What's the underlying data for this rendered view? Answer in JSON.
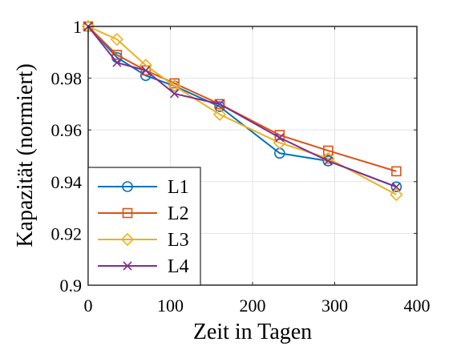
{
  "chart_data": {
    "type": "line",
    "xlabel": "Zeit in Tagen",
    "ylabel": "Kapazität (normiert)",
    "xlim": [
      0,
      400
    ],
    "ylim": [
      0.9,
      1.0
    ],
    "xticks": [
      0,
      100,
      200,
      300,
      400
    ],
    "xtick_labels": [
      "0",
      "100",
      "200",
      "300",
      "400"
    ],
    "yticks": [
      0.9,
      0.92,
      0.94,
      0.96,
      0.98,
      1.0
    ],
    "ytick_labels": [
      "0.9",
      "0.92",
      "0.94",
      "0.96",
      "0.98",
      "1"
    ],
    "grid": true,
    "legend_position": "bottom-left",
    "series": [
      {
        "name": "L1",
        "color": "#0072BD",
        "marker": "circle",
        "x": [
          0,
          35,
          70,
          105,
          160,
          233,
          292,
          375
        ],
        "y": [
          1.0,
          0.988,
          0.981,
          0.977,
          0.969,
          0.951,
          0.948,
          0.938
        ]
      },
      {
        "name": "L2",
        "color": "#D95319",
        "marker": "square",
        "x": [
          0,
          35,
          70,
          105,
          160,
          233,
          292,
          375
        ],
        "y": [
          1.0,
          0.989,
          0.983,
          0.978,
          0.97,
          0.958,
          0.952,
          0.944
        ]
      },
      {
        "name": "L3",
        "color": "#EDB120",
        "marker": "diamond",
        "x": [
          0,
          35,
          70,
          105,
          160,
          233,
          292,
          375
        ],
        "y": [
          1.0,
          0.995,
          0.985,
          0.977,
          0.966,
          0.955,
          0.949,
          0.935
        ]
      },
      {
        "name": "L4",
        "color": "#7E2F8E",
        "marker": "x",
        "x": [
          0,
          35,
          70,
          105,
          160,
          233,
          292,
          375
        ],
        "y": [
          1.0,
          0.986,
          0.983,
          0.974,
          0.97,
          0.957,
          0.948,
          0.938
        ]
      }
    ]
  }
}
